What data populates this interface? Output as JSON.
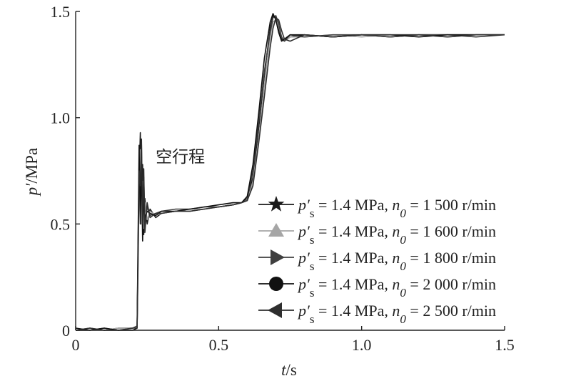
{
  "chart_data": {
    "type": "line",
    "xlabel": {
      "var": "t",
      "unit": "/s"
    },
    "ylabel": {
      "var": "p′",
      "unit": "/MPa"
    },
    "xlim": [
      0,
      1.5
    ],
    "ylim": [
      0,
      1.5
    ],
    "xticks": [
      0,
      0.5,
      1.0,
      1.5
    ],
    "yticks": [
      0,
      0.5,
      1.0,
      1.5
    ],
    "xtick_labels": [
      "0",
      "0.5",
      "1.0",
      "1.5"
    ],
    "ytick_labels": [
      "0",
      "0.5",
      "1.0",
      "1.5"
    ],
    "grid": false,
    "legend_position": "right",
    "annotation": {
      "text": "空行程",
      "x": 0.28,
      "y": 0.79
    },
    "series": [
      {
        "name": "p′s = 1.4 MPa, n0 = 1 500 r/min",
        "label": {
          "p": "p′",
          "s": "s",
          "mid": " = 1.4 MPa, ",
          "n": "n",
          "n0": "0",
          "tail": " = 1 500 r/min"
        },
        "marker": "star",
        "color": "#1a1a1a",
        "x": [
          0,
          0.05,
          0.1,
          0.15,
          0.2,
          0.215,
          0.218,
          0.222,
          0.226,
          0.23,
          0.234,
          0.238,
          0.242,
          0.25,
          0.26,
          0.28,
          0.3,
          0.35,
          0.4,
          0.45,
          0.5,
          0.55,
          0.58,
          0.6,
          0.62,
          0.64,
          0.66,
          0.68,
          0.69,
          0.7,
          0.71,
          0.72,
          0.73,
          0.75,
          0.8,
          0.9,
          1.0,
          1.1,
          1.2,
          1.3,
          1.4,
          1.5
        ],
        "y": [
          0.0,
          0.01,
          0.0,
          0.01,
          0.01,
          0.02,
          0.3,
          0.7,
          0.93,
          0.55,
          0.78,
          0.45,
          0.62,
          0.5,
          0.57,
          0.53,
          0.55,
          0.56,
          0.56,
          0.57,
          0.58,
          0.59,
          0.6,
          0.62,
          0.72,
          0.95,
          1.2,
          1.42,
          1.48,
          1.47,
          1.42,
          1.37,
          1.36,
          1.38,
          1.39,
          1.38,
          1.39,
          1.38,
          1.39,
          1.39,
          1.39,
          1.39
        ]
      },
      {
        "name": "p′s = 1.4 MPa, n0 = 1 600 r/min",
        "label": {
          "p": "p′",
          "s": "s",
          "mid": " = 1.4 MPa, ",
          "n": "n",
          "n0": "0",
          "tail": " = 1 600 r/min"
        },
        "marker": "triangle-up",
        "color": "#a6a6a6",
        "x": [
          0,
          0.05,
          0.1,
          0.15,
          0.2,
          0.215,
          0.218,
          0.222,
          0.226,
          0.23,
          0.234,
          0.238,
          0.242,
          0.25,
          0.26,
          0.28,
          0.3,
          0.35,
          0.4,
          0.45,
          0.5,
          0.55,
          0.58,
          0.6,
          0.62,
          0.64,
          0.66,
          0.68,
          0.69,
          0.7,
          0.71,
          0.72,
          0.73,
          0.75,
          0.8,
          0.9,
          1.0,
          1.1,
          1.2,
          1.3,
          1.4,
          1.5
        ],
        "y": [
          0.0,
          0.01,
          0.0,
          0.01,
          0.01,
          0.02,
          0.25,
          0.65,
          0.85,
          0.5,
          0.7,
          0.48,
          0.6,
          0.52,
          0.56,
          0.54,
          0.55,
          0.56,
          0.57,
          0.57,
          0.58,
          0.59,
          0.6,
          0.61,
          0.7,
          0.9,
          1.15,
          1.38,
          1.45,
          1.46,
          1.43,
          1.38,
          1.36,
          1.38,
          1.38,
          1.39,
          1.38,
          1.39,
          1.39,
          1.38,
          1.39,
          1.39
        ]
      },
      {
        "name": "p′s = 1.4 MPa, n0 = 1 800 r/min",
        "label": {
          "p": "p′",
          "s": "s",
          "mid": " = 1.4 MPa, ",
          "n": "n",
          "n0": "0",
          "tail": " = 1 800 r/min"
        },
        "marker": "triangle-right",
        "color": "#3f3f3f",
        "x": [
          0,
          0.05,
          0.1,
          0.15,
          0.2,
          0.215,
          0.218,
          0.222,
          0.226,
          0.23,
          0.234,
          0.238,
          0.242,
          0.25,
          0.26,
          0.28,
          0.3,
          0.35,
          0.4,
          0.45,
          0.5,
          0.55,
          0.58,
          0.6,
          0.62,
          0.64,
          0.66,
          0.68,
          0.69,
          0.7,
          0.71,
          0.72,
          0.73,
          0.75,
          0.8,
          0.9,
          1.0,
          1.1,
          1.2,
          1.3,
          1.4,
          1.5
        ],
        "y": [
          0.0,
          0.0,
          0.01,
          0.0,
          0.01,
          0.02,
          0.35,
          0.8,
          0.6,
          0.88,
          0.48,
          0.72,
          0.5,
          0.58,
          0.54,
          0.55,
          0.56,
          0.57,
          0.57,
          0.58,
          0.58,
          0.59,
          0.6,
          0.62,
          0.75,
          0.98,
          1.22,
          1.4,
          1.47,
          1.48,
          1.44,
          1.38,
          1.36,
          1.39,
          1.38,
          1.39,
          1.39,
          1.38,
          1.39,
          1.39,
          1.38,
          1.39
        ]
      },
      {
        "name": "p′s = 1.4 MPa, n0 = 2 000 r/min",
        "label": {
          "p": "p′",
          "s": "s",
          "mid": " = 1.4 MPa, ",
          "n": "n",
          "n0": "0",
          "tail": " = 2 000 r/min"
        },
        "marker": "circle",
        "color": "#111111",
        "x": [
          0,
          0.05,
          0.1,
          0.15,
          0.2,
          0.215,
          0.218,
          0.222,
          0.226,
          0.23,
          0.234,
          0.238,
          0.242,
          0.25,
          0.26,
          0.28,
          0.3,
          0.35,
          0.4,
          0.45,
          0.5,
          0.55,
          0.58,
          0.6,
          0.62,
          0.64,
          0.66,
          0.68,
          0.69,
          0.7,
          0.71,
          0.72,
          0.73,
          0.75,
          0.8,
          0.9,
          1.0,
          1.1,
          1.2,
          1.3,
          1.4,
          1.5
        ],
        "y": [
          0.01,
          0.0,
          0.01,
          0.0,
          0.0,
          0.01,
          0.4,
          0.87,
          0.5,
          0.8,
          0.42,
          0.65,
          0.53,
          0.56,
          0.55,
          0.54,
          0.56,
          0.56,
          0.57,
          0.58,
          0.59,
          0.6,
          0.6,
          0.63,
          0.78,
          1.02,
          1.28,
          1.45,
          1.49,
          1.46,
          1.4,
          1.36,
          1.37,
          1.39,
          1.39,
          1.38,
          1.39,
          1.39,
          1.38,
          1.39,
          1.39,
          1.39
        ]
      },
      {
        "name": "p′s = 1.4 MPa, n0 = 2 500 r/min",
        "label": {
          "p": "p′",
          "s": "s",
          "mid": " = 1.4 MPa, ",
          "n": "n",
          "n0": "0",
          "tail": " = 2 500 r/min"
        },
        "marker": "triangle-left",
        "color": "#2e2e2e",
        "x": [
          0,
          0.05,
          0.1,
          0.15,
          0.2,
          0.215,
          0.218,
          0.222,
          0.226,
          0.23,
          0.234,
          0.238,
          0.242,
          0.25,
          0.26,
          0.28,
          0.3,
          0.35,
          0.4,
          0.45,
          0.5,
          0.55,
          0.58,
          0.6,
          0.62,
          0.64,
          0.66,
          0.68,
          0.69,
          0.7,
          0.71,
          0.72,
          0.73,
          0.75,
          0.8,
          0.9,
          1.0,
          1.1,
          1.2,
          1.3,
          1.4,
          1.5
        ],
        "y": [
          0.0,
          0.01,
          0.0,
          0.0,
          0.01,
          0.01,
          0.3,
          0.75,
          0.68,
          0.9,
          0.5,
          0.76,
          0.46,
          0.6,
          0.53,
          0.55,
          0.55,
          0.56,
          0.56,
          0.57,
          0.58,
          0.59,
          0.6,
          0.61,
          0.68,
          0.88,
          1.1,
          1.33,
          1.42,
          1.47,
          1.46,
          1.41,
          1.37,
          1.36,
          1.39,
          1.38,
          1.39,
          1.39,
          1.39,
          1.38,
          1.39,
          1.39
        ]
      }
    ]
  }
}
